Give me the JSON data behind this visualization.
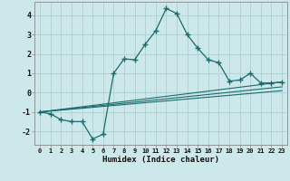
{
  "xlabel": "Humidex (Indice chaleur)",
  "ylabel": "",
  "xlim": [
    -0.5,
    23.5
  ],
  "ylim": [
    -2.7,
    4.7
  ],
  "yticks": [
    -2,
    -1,
    0,
    1,
    2,
    3,
    4
  ],
  "xtick_labels": [
    "0",
    "1",
    "2",
    "3",
    "4",
    "5",
    "6",
    "7",
    "8",
    "9",
    "10",
    "11",
    "12",
    "13",
    "14",
    "15",
    "16",
    "17",
    "18",
    "19",
    "20",
    "21",
    "22",
    "23"
  ],
  "xtick_pos": [
    0,
    1,
    2,
    3,
    4,
    5,
    6,
    7,
    8,
    9,
    10,
    11,
    12,
    13,
    14,
    15,
    16,
    17,
    18,
    19,
    20,
    21,
    22,
    23
  ],
  "bg_color": "#cde8ea",
  "grid_color": "#b0d0d2",
  "line_color": "#1a6b6b",
  "series1_x": [
    0,
    1,
    2,
    3,
    4,
    5,
    6,
    7,
    8,
    9,
    10,
    11,
    12,
    13,
    14,
    15,
    16,
    17,
    18,
    19,
    20,
    21,
    22,
    23
  ],
  "series1_y": [
    -1.0,
    -1.1,
    -1.4,
    -1.5,
    -1.5,
    -2.4,
    -2.15,
    1.0,
    1.75,
    1.7,
    2.5,
    3.2,
    4.35,
    4.1,
    3.0,
    2.3,
    1.7,
    1.55,
    0.6,
    0.65,
    1.0,
    0.5,
    0.5,
    0.55
  ],
  "series2_x": [
    0,
    23
  ],
  "series2_y": [
    -1.0,
    0.55
  ],
  "series3_x": [
    0,
    23
  ],
  "series3_y": [
    -1.0,
    0.3
  ],
  "series4_x": [
    0,
    23
  ],
  "series4_y": [
    -1.0,
    0.1
  ]
}
